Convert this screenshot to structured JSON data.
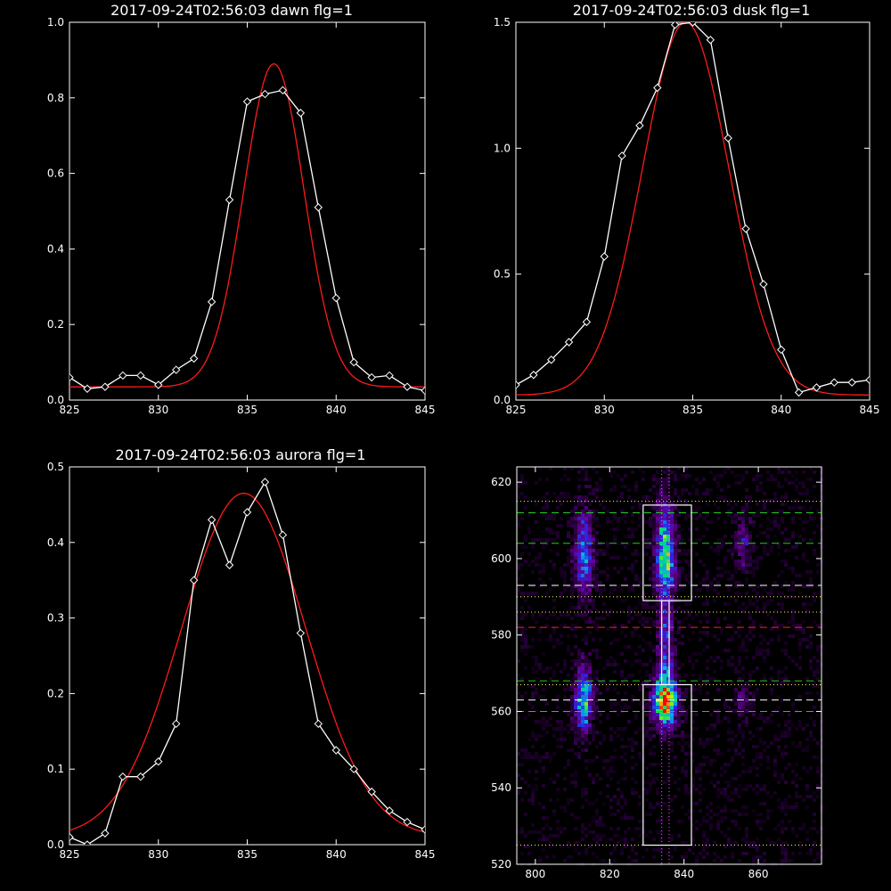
{
  "colors": {
    "background": "#000000",
    "axes": "#ffffff",
    "data": "#ffffff",
    "fit": "#ff1a1a"
  },
  "chart_data": [
    {
      "type": "line",
      "title": "2017-09-24T02:56:03 dawn flg=1",
      "xlim": [
        825,
        845
      ],
      "ylim": [
        0,
        1.0
      ],
      "xticks": [
        825,
        830,
        835,
        840,
        845
      ],
      "xtick_labels": [
        "825",
        "830",
        "835",
        "840",
        "845"
      ],
      "yticks": [
        0,
        0.2,
        0.4,
        0.6,
        0.8,
        1.0
      ],
      "ytick_labels": [
        "0.0",
        "0.2",
        "0.4",
        "0.6",
        "0.8",
        "1.0"
      ],
      "series": [
        {
          "marker": "diamond",
          "color": "#ffffff",
          "x": [
            825,
            826,
            827,
            828,
            829,
            830,
            831,
            832,
            833,
            834,
            835,
            836,
            837,
            838,
            839,
            840,
            841,
            842,
            843,
            844,
            845
          ],
          "y": [
            0.06,
            0.03,
            0.035,
            0.065,
            0.065,
            0.04,
            0.08,
            0.11,
            0.26,
            0.53,
            0.79,
            0.81,
            0.82,
            0.76,
            0.51,
            0.27,
            0.1,
            0.06,
            0.065,
            0.035,
            0.025
          ]
        },
        {
          "marker": "none",
          "color": "#ff1a1a",
          "gaussian": {
            "a": 0.855,
            "mu": 836.5,
            "sigma": 1.7,
            "c": 0.035
          }
        }
      ]
    },
    {
      "type": "line",
      "title": "2017-09-24T02:56:03 dusk flg=1",
      "xlim": [
        825,
        845
      ],
      "ylim": [
        0,
        1.5
      ],
      "xticks": [
        825,
        830,
        835,
        840,
        845
      ],
      "xtick_labels": [
        "825",
        "830",
        "835",
        "840",
        "845"
      ],
      "yticks": [
        0,
        0.5,
        1.0,
        1.5
      ],
      "ytick_labels": [
        "0.0",
        "0.5",
        "1.0",
        "1.5"
      ],
      "series": [
        {
          "marker": "diamond",
          "color": "#ffffff",
          "x": [
            825,
            826,
            827,
            828,
            829,
            830,
            831,
            832,
            833,
            834,
            835,
            836,
            837,
            838,
            839,
            840,
            841,
            842,
            843,
            844,
            845
          ],
          "y": [
            0.06,
            0.1,
            0.16,
            0.23,
            0.31,
            0.57,
            0.97,
            1.09,
            1.24,
            1.49,
            1.5,
            1.43,
            1.04,
            0.68,
            0.46,
            0.2,
            0.03,
            0.05,
            0.07,
            0.07,
            0.08
          ]
        },
        {
          "marker": "none",
          "color": "#ff1a1a",
          "gaussian": {
            "a": 1.48,
            "mu": 834.6,
            "sigma": 2.45,
            "c": 0.02
          }
        }
      ]
    },
    {
      "type": "line",
      "title": "2017-09-24T02:56:03 aurora flg=1",
      "xlim": [
        825,
        845
      ],
      "ylim": [
        0,
        0.5
      ],
      "xticks": [
        825,
        830,
        835,
        840,
        845
      ],
      "xtick_labels": [
        "825",
        "830",
        "835",
        "840",
        "845"
      ],
      "yticks": [
        0,
        0.1,
        0.2,
        0.3,
        0.4,
        0.5
      ],
      "ytick_labels": [
        "0.0",
        "0.1",
        "0.2",
        "0.3",
        "0.4",
        "0.5"
      ],
      "series": [
        {
          "marker": "diamond",
          "color": "#ffffff",
          "x": [
            825,
            826,
            827,
            828,
            829,
            830,
            831,
            832,
            833,
            834,
            835,
            836,
            837,
            838,
            839,
            840,
            841,
            842,
            843,
            844,
            845
          ],
          "y": [
            0.01,
            0.0,
            0.015,
            0.09,
            0.09,
            0.11,
            0.16,
            0.35,
            0.43,
            0.37,
            0.44,
            0.48,
            0.41,
            0.28,
            0.16,
            0.125,
            0.1,
            0.07,
            0.045,
            0.03,
            0.02
          ]
        },
        {
          "marker": "none",
          "color": "#ff1a1a",
          "gaussian": {
            "a": 0.455,
            "mu": 834.8,
            "sigma": 3.5,
            "c": 0.01
          }
        }
      ]
    },
    {
      "type": "heatmap",
      "title": "",
      "xlim": [
        795,
        877
      ],
      "ylim": [
        520,
        624
      ],
      "xticks": [
        800,
        820,
        840,
        860
      ],
      "xtick_labels": [
        "800",
        "820",
        "840",
        "860"
      ],
      "yticks": [
        520,
        540,
        560,
        580,
        600,
        620
      ],
      "ytick_labels": [
        "520",
        "540",
        "560",
        "580",
        "600",
        "620"
      ],
      "colormap": "rainbow",
      "blobs": [
        {
          "x": 813,
          "y": 601,
          "sx": 1.8,
          "sy": 8,
          "amp": 0.5
        },
        {
          "x": 813,
          "y": 563,
          "sx": 1.8,
          "sy": 6,
          "amp": 0.6
        },
        {
          "x": 835,
          "y": 601,
          "sx": 1.8,
          "sy": 9,
          "amp": 0.75
        },
        {
          "x": 835,
          "y": 563,
          "sx": 2.2,
          "sy": 5,
          "amp": 1.0
        },
        {
          "x": 835,
          "y": 578,
          "sx": 1.5,
          "sy": 6,
          "amp": 0.35
        },
        {
          "x": 856,
          "y": 604,
          "sx": 1.5,
          "sy": 5,
          "amp": 0.25
        },
        {
          "x": 856,
          "y": 563,
          "sx": 1.5,
          "sy": 3,
          "amp": 0.25
        }
      ],
      "rectangles": [
        {
          "x0": 829,
          "x1": 842,
          "y0": 589,
          "y1": 614,
          "color": "#ffffff"
        },
        {
          "x0": 829,
          "x1": 842,
          "y0": 525,
          "y1": 567,
          "color": "#ffffff"
        },
        {
          "x0": 834,
          "x1": 836,
          "y0": 567,
          "y1": 589,
          "color": "#ffffff"
        }
      ],
      "hlines": [
        {
          "y": 612,
          "color": "#22cc22",
          "style": "dashed"
        },
        {
          "y": 604,
          "color": "#22cc22",
          "style": "dashed"
        },
        {
          "y": 593,
          "color": "#ffffff",
          "style": "dashed"
        },
        {
          "y": 582,
          "color": "#ff2222",
          "style": "dashed"
        },
        {
          "y": 568,
          "color": "#22cc22",
          "style": "dashed"
        },
        {
          "y": 563,
          "color": "#ffffff",
          "style": "dashed"
        },
        {
          "y": 560,
          "color": "#22cc22",
          "style": "dashed"
        },
        {
          "y": 615,
          "color": "#ffff66",
          "style": "dotted"
        },
        {
          "y": 590,
          "color": "#ffff66",
          "style": "dotted"
        },
        {
          "y": 586,
          "color": "#ffff66",
          "style": "dotted"
        },
        {
          "y": 567,
          "color": "#ffff66",
          "style": "dotted"
        },
        {
          "y": 525,
          "color": "#ffff66",
          "style": "dotted"
        }
      ],
      "vlines": [
        {
          "x": 834,
          "color": "#ff55ff",
          "style": "dotted"
        },
        {
          "x": 836,
          "color": "#ff55ff",
          "style": "dotted"
        }
      ]
    }
  ]
}
